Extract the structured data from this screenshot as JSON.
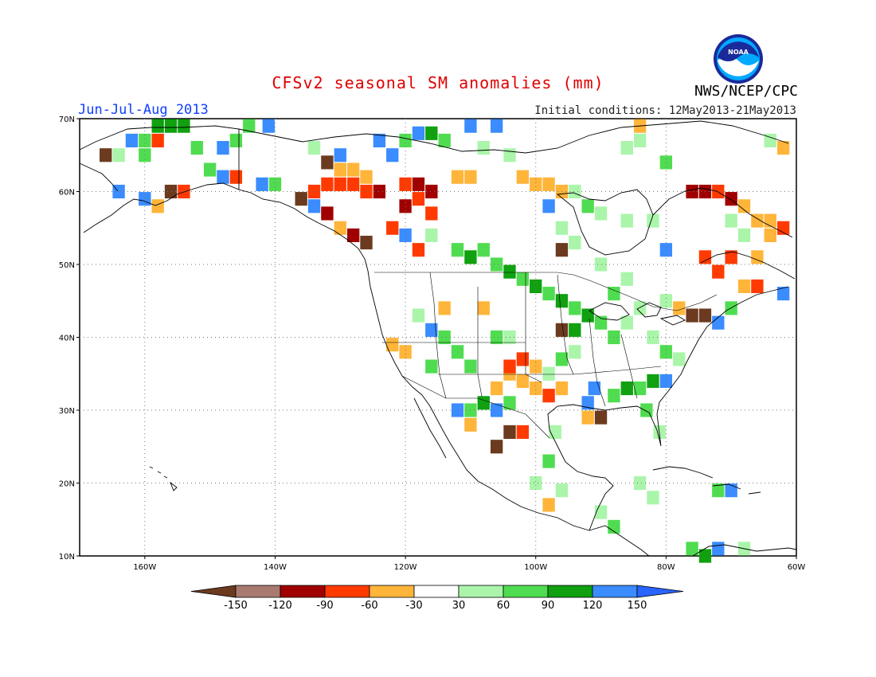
{
  "title": "CFSv2 seasonal SM anomalies (mm)",
  "season": "Jun-Jul-Aug 2013",
  "initial_conditions": "Initial conditions: 12May2013-21May2013",
  "agency": "NWS/NCEP/CPC",
  "logo_text": "NOAA",
  "axes": {
    "lon_min": -170,
    "lon_max": -60,
    "lat_min": 10,
    "lat_max": 70,
    "lat_ticks": [
      {
        "value": 70,
        "label": "70N"
      },
      {
        "value": 60,
        "label": "60N"
      },
      {
        "value": 50,
        "label": "50N"
      },
      {
        "value": 40,
        "label": "40N"
      },
      {
        "value": 30,
        "label": "30N"
      },
      {
        "value": 20,
        "label": "20N"
      },
      {
        "value": 10,
        "label": "10N"
      }
    ],
    "lon_ticks": [
      {
        "value": -160,
        "label": "160W"
      },
      {
        "value": -140,
        "label": "140W"
      },
      {
        "value": -120,
        "label": "120W"
      },
      {
        "value": -100,
        "label": "100W"
      },
      {
        "value": -80,
        "label": "80W"
      },
      {
        "value": -60,
        "label": "60W"
      }
    ]
  },
  "colorbar": {
    "labels": [
      "-150",
      "-120",
      "-90",
      "-60",
      "-30",
      "30",
      "60",
      "90",
      "120",
      "150"
    ],
    "colors": [
      "#6b3a1f",
      "#a87a70",
      "#a00000",
      "#ff3a00",
      "#ffb53a",
      "#ffffff",
      "#aaf5aa",
      "#50dc50",
      "#10a010",
      "#3a8cff",
      "#2a64ff"
    ]
  },
  "palette": {
    "brown": "#6b3a1f",
    "rose": "#a87a70",
    "darkred": "#a00000",
    "red": "#ff3a00",
    "orange": "#ffb53a",
    "lightgreen": "#aaf5aa",
    "green": "#50dc50",
    "darkgreen": "#10a010",
    "blue": "#3a8cff"
  },
  "chart_data": {
    "type": "heatmap",
    "cell_size_deg": 1.875,
    "cells_note_units": "lon,lat in degrees (negative = W)",
    "cells": [
      {
        "c": "darkgreen",
        "lon": -158,
        "lat": 69
      },
      {
        "c": "darkgreen",
        "lon": -156,
        "lat": 69
      },
      {
        "c": "darkgreen",
        "lon": -154,
        "lat": 69
      },
      {
        "c": "green",
        "lon": -160,
        "lat": 67
      },
      {
        "c": "blue",
        "lon": -162,
        "lat": 67
      },
      {
        "c": "red",
        "lon": -158,
        "lat": 67
      },
      {
        "c": "lightgreen",
        "lon": -164,
        "lat": 65
      },
      {
        "c": "green",
        "lon": -160,
        "lat": 65
      },
      {
        "c": "brown",
        "lon": -166,
        "lat": 65
      },
      {
        "c": "green",
        "lon": -152,
        "lat": 66
      },
      {
        "c": "blue",
        "lon": -148,
        "lat": 66
      },
      {
        "c": "green",
        "lon": -146,
        "lat": 67
      },
      {
        "c": "blue",
        "lon": -141,
        "lat": 69
      },
      {
        "c": "green",
        "lon": -144,
        "lat": 69
      },
      {
        "c": "green",
        "lon": -150,
        "lat": 63
      },
      {
        "c": "blue",
        "lon": -148,
        "lat": 62
      },
      {
        "c": "red",
        "lon": -146,
        "lat": 62
      },
      {
        "c": "blue",
        "lon": -142,
        "lat": 61
      },
      {
        "c": "green",
        "lon": -140,
        "lat": 61
      },
      {
        "c": "brown",
        "lon": -156,
        "lat": 60
      },
      {
        "c": "red",
        "lon": -154,
        "lat": 60
      },
      {
        "c": "blue",
        "lon": -160,
        "lat": 59
      },
      {
        "c": "orange",
        "lon": -158,
        "lat": 58
      },
      {
        "c": "blue",
        "lon": -164,
        "lat": 60
      },
      {
        "c": "orange",
        "lon": -130,
        "lat": 63
      },
      {
        "c": "orange",
        "lon": -128,
        "lat": 63
      },
      {
        "c": "orange",
        "lon": -126,
        "lat": 62
      },
      {
        "c": "red",
        "lon": -132,
        "lat": 61
      },
      {
        "c": "red",
        "lon": -130,
        "lat": 61
      },
      {
        "c": "red",
        "lon": -128,
        "lat": 61
      },
      {
        "c": "red",
        "lon": -126,
        "lat": 60
      },
      {
        "c": "darkred",
        "lon": -124,
        "lat": 60
      },
      {
        "c": "red",
        "lon": -134,
        "lat": 60
      },
      {
        "c": "red",
        "lon": -120,
        "lat": 61
      },
      {
        "c": "darkred",
        "lon": -118,
        "lat": 61
      },
      {
        "c": "darkred",
        "lon": -116,
        "lat": 60
      },
      {
        "c": "red",
        "lon": -118,
        "lat": 59
      },
      {
        "c": "darkred",
        "lon": -120,
        "lat": 58
      },
      {
        "c": "red",
        "lon": -116,
        "lat": 57
      },
      {
        "c": "orange",
        "lon": -112,
        "lat": 62
      },
      {
        "c": "orange",
        "lon": -110,
        "lat": 62
      },
      {
        "c": "blue",
        "lon": -122,
        "lat": 65
      },
      {
        "c": "blue",
        "lon": -124,
        "lat": 67
      },
      {
        "c": "green",
        "lon": -120,
        "lat": 67
      },
      {
        "c": "blue",
        "lon": -118,
        "lat": 68
      },
      {
        "c": "darkgreen",
        "lon": -116,
        "lat": 68
      },
      {
        "c": "green",
        "lon": -114,
        "lat": 67
      },
      {
        "c": "blue",
        "lon": -110,
        "lat": 69
      },
      {
        "c": "blue",
        "lon": -106,
        "lat": 69
      },
      {
        "c": "lightgreen",
        "lon": -108,
        "lat": 66
      },
      {
        "c": "lightgreen",
        "lon": -104,
        "lat": 65
      },
      {
        "c": "orange",
        "lon": -102,
        "lat": 62
      },
      {
        "c": "orange",
        "lon": -100,
        "lat": 61
      },
      {
        "c": "orange",
        "lon": -98,
        "lat": 61
      },
      {
        "c": "orange",
        "lon": -96,
        "lat": 60
      },
      {
        "c": "lightgreen",
        "lon": -94,
        "lat": 60
      },
      {
        "c": "green",
        "lon": -92,
        "lat": 58
      },
      {
        "c": "lightgreen",
        "lon": -90,
        "lat": 57
      },
      {
        "c": "blue",
        "lon": -98,
        "lat": 58
      },
      {
        "c": "lightgreen",
        "lon": -86,
        "lat": 56
      },
      {
        "c": "green",
        "lon": -112,
        "lat": 52
      },
      {
        "c": "darkgreen",
        "lon": -110,
        "lat": 51
      },
      {
        "c": "green",
        "lon": -108,
        "lat": 52
      },
      {
        "c": "green",
        "lon": -106,
        "lat": 50
      },
      {
        "c": "darkgreen",
        "lon": -104,
        "lat": 49
      },
      {
        "c": "green",
        "lon": -102,
        "lat": 48
      },
      {
        "c": "darkgreen",
        "lon": -100,
        "lat": 47
      },
      {
        "c": "green",
        "lon": -98,
        "lat": 46
      },
      {
        "c": "darkgreen",
        "lon": -96,
        "lat": 45
      },
      {
        "c": "green",
        "lon": -94,
        "lat": 44
      },
      {
        "c": "darkgreen",
        "lon": -92,
        "lat": 43
      },
      {
        "c": "green",
        "lon": -90,
        "lat": 42
      },
      {
        "c": "green",
        "lon": -88,
        "lat": 40
      },
      {
        "c": "lightgreen",
        "lon": -86,
        "lat": 42
      },
      {
        "c": "lightgreen",
        "lon": -84,
        "lat": 44
      },
      {
        "c": "lightgreen",
        "lon": -82,
        "lat": 40
      },
      {
        "c": "green",
        "lon": -80,
        "lat": 38
      },
      {
        "c": "lightgreen",
        "lon": -78,
        "lat": 37
      },
      {
        "c": "darkgreen",
        "lon": -82,
        "lat": 34
      },
      {
        "c": "blue",
        "lon": -80,
        "lat": 34
      },
      {
        "c": "green",
        "lon": -84,
        "lat": 33
      },
      {
        "c": "darkgreen",
        "lon": -86,
        "lat": 33
      },
      {
        "c": "green",
        "lon": -88,
        "lat": 32
      },
      {
        "c": "blue",
        "lon": -91,
        "lat": 33
      },
      {
        "c": "green",
        "lon": -83,
        "lat": 30
      },
      {
        "c": "lightgreen",
        "lon": -81,
        "lat": 27
      },
      {
        "c": "orange",
        "lon": -104,
        "lat": 35
      },
      {
        "c": "orange",
        "lon": -102,
        "lat": 34
      },
      {
        "c": "red",
        "lon": -104,
        "lat": 36
      },
      {
        "c": "orange",
        "lon": -106,
        "lat": 33
      },
      {
        "c": "orange",
        "lon": -100,
        "lat": 33
      },
      {
        "c": "red",
        "lon": -98,
        "lat": 32
      },
      {
        "c": "orange",
        "lon": -96,
        "lat": 33
      },
      {
        "c": "red",
        "lon": -102,
        "lat": 37
      },
      {
        "c": "orange",
        "lon": -100,
        "lat": 36
      },
      {
        "c": "brown",
        "lon": -104,
        "lat": 27
      },
      {
        "c": "red",
        "lon": -102,
        "lat": 27
      },
      {
        "c": "brown",
        "lon": -106,
        "lat": 25
      },
      {
        "c": "orange",
        "lon": -110,
        "lat": 28
      },
      {
        "c": "blue",
        "lon": -112,
        "lat": 30
      },
      {
        "c": "green",
        "lon": -110,
        "lat": 30
      },
      {
        "c": "darkgreen",
        "lon": -108,
        "lat": 31
      },
      {
        "c": "blue",
        "lon": -106,
        "lat": 30
      },
      {
        "c": "green",
        "lon": -104,
        "lat": 31
      },
      {
        "c": "orange",
        "lon": -120,
        "lat": 38
      },
      {
        "c": "orange",
        "lon": -122,
        "lat": 39
      },
      {
        "c": "blue",
        "lon": -116,
        "lat": 41
      },
      {
        "c": "green",
        "lon": -114,
        "lat": 40
      },
      {
        "c": "green",
        "lon": -112,
        "lat": 38
      },
      {
        "c": "green",
        "lon": -116,
        "lat": 36
      },
      {
        "c": "lightgreen",
        "lon": -118,
        "lat": 43
      },
      {
        "c": "orange",
        "lon": -114,
        "lat": 44
      },
      {
        "c": "orange",
        "lon": -108,
        "lat": 44
      },
      {
        "c": "green",
        "lon": -106,
        "lat": 40
      },
      {
        "c": "lightgreen",
        "lon": -104,
        "lat": 40
      },
      {
        "c": "green",
        "lon": -110,
        "lat": 36
      },
      {
        "c": "lightgreen",
        "lon": -98,
        "lat": 35
      },
      {
        "c": "green",
        "lon": -96,
        "lat": 37
      },
      {
        "c": "lightgreen",
        "lon": -94,
        "lat": 38
      },
      {
        "c": "brown",
        "lon": -96,
        "lat": 41
      },
      {
        "c": "darkgreen",
        "lon": -94,
        "lat": 41
      },
      {
        "c": "orange",
        "lon": -92,
        "lat": 29
      },
      {
        "c": "brown",
        "lon": -90,
        "lat": 29
      },
      {
        "c": "blue",
        "lon": -92,
        "lat": 31
      },
      {
        "c": "lightgreen",
        "lon": -97,
        "lat": 27
      },
      {
        "c": "green",
        "lon": -98,
        "lat": 23
      },
      {
        "c": "lightgreen",
        "lon": -100,
        "lat": 20
      },
      {
        "c": "orange",
        "lon": -98,
        "lat": 17
      },
      {
        "c": "lightgreen",
        "lon": -96,
        "lat": 19
      },
      {
        "c": "lightgreen",
        "lon": -90,
        "lat": 16
      },
      {
        "c": "green",
        "lon": -88,
        "lat": 14
      },
      {
        "c": "lightgreen",
        "lon": -84,
        "lat": 20
      },
      {
        "c": "lightgreen",
        "lon": -82,
        "lat": 18
      },
      {
        "c": "green",
        "lon": -72,
        "lat": 19
      },
      {
        "c": "blue",
        "lon": -70,
        "lat": 19
      },
      {
        "c": "green",
        "lon": -76,
        "lat": 11
      },
      {
        "c": "blue",
        "lon": -72,
        "lat": 11
      },
      {
        "c": "lightgreen",
        "lon": -68,
        "lat": 11
      },
      {
        "c": "darkgreen",
        "lon": -74,
        "lat": 10
      },
      {
        "c": "darkred",
        "lon": -76,
        "lat": 60
      },
      {
        "c": "darkred",
        "lon": -74,
        "lat": 60
      },
      {
        "c": "red",
        "lon": -72,
        "lat": 60
      },
      {
        "c": "darkred",
        "lon": -70,
        "lat": 59
      },
      {
        "c": "orange",
        "lon": -68,
        "lat": 58
      },
      {
        "c": "orange",
        "lon": -66,
        "lat": 56
      },
      {
        "c": "orange",
        "lon": -64,
        "lat": 56
      },
      {
        "c": "red",
        "lon": -62,
        "lat": 55
      },
      {
        "c": "orange",
        "lon": -64,
        "lat": 54
      },
      {
        "c": "lightgreen",
        "lon": -70,
        "lat": 56
      },
      {
        "c": "lightgreen",
        "lon": -68,
        "lat": 54
      },
      {
        "c": "red",
        "lon": -74,
        "lat": 51
      },
      {
        "c": "red",
        "lon": -70,
        "lat": 51
      },
      {
        "c": "orange",
        "lon": -66,
        "lat": 51
      },
      {
        "c": "orange",
        "lon": -68,
        "lat": 47
      },
      {
        "c": "red",
        "lon": -72,
        "lat": 49
      },
      {
        "c": "brown",
        "lon": -74,
        "lat": 43
      },
      {
        "c": "brown",
        "lon": -76,
        "lat": 43
      },
      {
        "c": "blue",
        "lon": -72,
        "lat": 42
      },
      {
        "c": "green",
        "lon": -70,
        "lat": 44
      },
      {
        "c": "orange",
        "lon": -78,
        "lat": 44
      },
      {
        "c": "blue",
        "lon": -62,
        "lat": 46
      },
      {
        "c": "red",
        "lon": -66,
        "lat": 47
      },
      {
        "c": "lightgreen",
        "lon": -80,
        "lat": 45
      },
      {
        "c": "lightgreen",
        "lon": -86,
        "lat": 48
      },
      {
        "c": "lightgreen",
        "lon": -90,
        "lat": 50
      },
      {
        "c": "green",
        "lon": -88,
        "lat": 46
      },
      {
        "c": "brown",
        "lon": -96,
        "lat": 52
      },
      {
        "c": "lightgreen",
        "lon": -94,
        "lat": 53
      },
      {
        "c": "blue",
        "lon": -80,
        "lat": 52
      },
      {
        "c": "lightgreen",
        "lon": -96,
        "lat": 55
      },
      {
        "c": "lightgreen",
        "lon": -82,
        "lat": 56
      },
      {
        "c": "green",
        "lon": -80,
        "lat": 64
      },
      {
        "c": "lightgreen",
        "lon": -84,
        "lat": 67
      },
      {
        "c": "lightgreen",
        "lon": -86,
        "lat": 66
      },
      {
        "c": "lightgreen",
        "lon": -64,
        "lat": 67
      },
      {
        "c": "orange",
        "lon": -62,
        "lat": 66
      },
      {
        "c": "orange",
        "lon": -84,
        "lat": 69
      },
      {
        "c": "orange",
        "lon": -130,
        "lat": 55
      },
      {
        "c": "darkred",
        "lon": -128,
        "lat": 54
      },
      {
        "c": "brown",
        "lon": -126,
        "lat": 53
      },
      {
        "c": "red",
        "lon": -122,
        "lat": 55
      },
      {
        "c": "blue",
        "lon": -120,
        "lat": 54
      },
      {
        "c": "red",
        "lon": -118,
        "lat": 52
      },
      {
        "c": "lightgreen",
        "lon": -116,
        "lat": 54
      },
      {
        "c": "blue",
        "lon": -134,
        "lat": 58
      },
      {
        "c": "brown",
        "lon": -136,
        "lat": 59
      },
      {
        "c": "darkred",
        "lon": -132,
        "lat": 57
      },
      {
        "c": "blue",
        "lon": -130,
        "lat": 65
      },
      {
        "c": "brown",
        "lon": -132,
        "lat": 64
      },
      {
        "c": "lightgreen",
        "lon": -134,
        "lat": 66
      }
    ]
  }
}
